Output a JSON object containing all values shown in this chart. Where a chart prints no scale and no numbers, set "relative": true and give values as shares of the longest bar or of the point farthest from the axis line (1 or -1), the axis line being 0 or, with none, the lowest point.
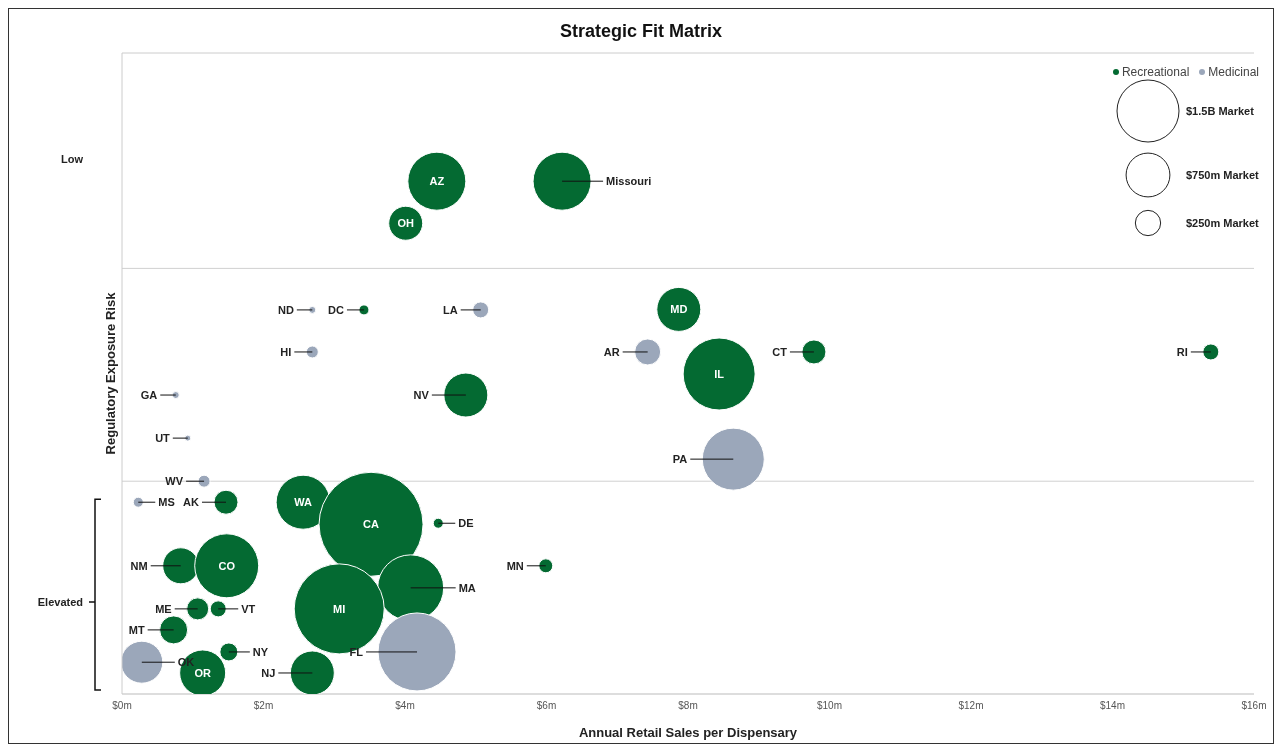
{
  "chart_data": {
    "type": "bubble",
    "title": "Strategic Fit Matrix",
    "xlabel": "Annual Retail Sales per Dispensary",
    "ylabel": "Regulatory Exposure Risk",
    "relative": true,
    "legend": "top right",
    "xlim": [
      0,
      16
    ],
    "xticks": [
      {
        "value": 0,
        "label": "$0m"
      },
      {
        "value": 2,
        "label": "$2m"
      },
      {
        "value": 4,
        "label": "$4m"
      },
      {
        "value": 6,
        "label": "$6m"
      },
      {
        "value": 8,
        "label": "$8m"
      },
      {
        "value": 10,
        "label": "$10m"
      },
      {
        "value": 12,
        "label": "$12m"
      },
      {
        "value": 14,
        "label": "$14m"
      },
      {
        "value": 16,
        "label": "$16m"
      }
    ],
    "size_legend": [
      {
        "value": 1500,
        "label": "$1.5B Market"
      },
      {
        "value": 750,
        "label": "$750m Market"
      },
      {
        "value": 250,
        "label": "$250m Market"
      }
    ],
    "ref_lines": [
      {
        "axis": "y",
        "value": 0.83,
        "color": "#d0d0d0"
      },
      {
        "axis": "y",
        "value": 0.415,
        "color": "#d0d0d0"
      }
    ],
    "series": [
      {
        "name": "Recreational",
        "color": "#046a32",
        "x": [
          4.45,
          6.22,
          4.01,
          7.87,
          3.42,
          9.78,
          15.39,
          8.44,
          4.86,
          1.47,
          2.56,
          3.52,
          4.47,
          5.99,
          0.83,
          1.48,
          4.08,
          3.07,
          1.07,
          1.36,
          0.73,
          1.51,
          1.14,
          2.69
        ],
        "values": [
          1.0,
          1.0,
          0.918,
          0.75,
          0.749,
          0.667,
          0.667,
          0.624,
          0.583,
          0.374,
          0.374,
          0.331,
          0.333,
          0.25,
          0.25,
          0.25,
          0.207,
          0.166,
          0.166,
          0.166,
          0.125,
          0.082,
          0.041,
          0.041
        ],
        "sizes": [
          1313,
          1313,
          451,
          755,
          39,
          225,
          100,
          2023,
          755,
          225,
          1138,
          4220,
          39,
          76,
          506,
          1598,
          1700,
          3161,
          189,
          100,
          306,
          126,
          826,
          755
        ]
      },
      {
        "name": "Medicinal",
        "color": "#9ba7ba",
        "x": [
          2.69,
          5.07,
          2.69,
          7.43,
          0.76,
          0.93,
          8.64,
          1.16,
          0.23,
          0.28,
          4.17
        ],
        "values": [
          0.749,
          0.749,
          0.667,
          0.667,
          0.583,
          0.499,
          0.458,
          0.415,
          0.374,
          0.062,
          0.082
        ],
        "sizes": [
          19,
          100,
          56,
          264,
          19,
          14,
          1500,
          56,
          39,
          688,
          2374
        ]
      }
    ],
    "annotations": [
      {
        "text": "AZ",
        "x": 4.45,
        "y": 1.0
      },
      {
        "text": "Missouri",
        "x": 6.22,
        "y": 1.0
      },
      {
        "text": "OH",
        "x": 4.01,
        "y": 0.918
      },
      {
        "text": "MD",
        "x": 7.87,
        "y": 0.75
      },
      {
        "text": "DC",
        "x": 3.42,
        "y": 0.749
      },
      {
        "text": "CT",
        "x": 9.78,
        "y": 0.667
      },
      {
        "text": "RI",
        "x": 15.39,
        "y": 0.667
      },
      {
        "text": "IL",
        "x": 8.44,
        "y": 0.624
      },
      {
        "text": "NV",
        "x": 4.86,
        "y": 0.583
      },
      {
        "text": "AK",
        "x": 1.47,
        "y": 0.374
      },
      {
        "text": "WA",
        "x": 2.56,
        "y": 0.374
      },
      {
        "text": "CA",
        "x": 3.52,
        "y": 0.331
      },
      {
        "text": "DE",
        "x": 4.47,
        "y": 0.333
      },
      {
        "text": "MN",
        "x": 5.99,
        "y": 0.25
      },
      {
        "text": "NM",
        "x": 0.83,
        "y": 0.25
      },
      {
        "text": "CO",
        "x": 1.48,
        "y": 0.25
      },
      {
        "text": "MA",
        "x": 4.08,
        "y": 0.207
      },
      {
        "text": "MI",
        "x": 3.07,
        "y": 0.166
      },
      {
        "text": "ME",
        "x": 1.07,
        "y": 0.166
      },
      {
        "text": "VT",
        "x": 1.36,
        "y": 0.166
      },
      {
        "text": "MT",
        "x": 0.73,
        "y": 0.125
      },
      {
        "text": "NY",
        "x": 1.51,
        "y": 0.082
      },
      {
        "text": "OR",
        "x": 1.14,
        "y": 0.041
      },
      {
        "text": "NJ",
        "x": 2.69,
        "y": 0.041
      },
      {
        "text": "ND",
        "x": 2.69,
        "y": 0.749
      },
      {
        "text": "LA",
        "x": 5.07,
        "y": 0.749
      },
      {
        "text": "HI",
        "x": 2.69,
        "y": 0.667
      },
      {
        "text": "AR",
        "x": 7.43,
        "y": 0.667
      },
      {
        "text": "GA",
        "x": 0.76,
        "y": 0.583
      },
      {
        "text": "UT",
        "x": 0.93,
        "y": 0.499
      },
      {
        "text": "PA",
        "x": 8.64,
        "y": 0.458
      },
      {
        "text": "WV",
        "x": 1.16,
        "y": 0.415
      },
      {
        "text": "MS",
        "x": 0.23,
        "y": 0.374
      },
      {
        "text": "OK",
        "x": 0.28,
        "y": 0.062
      },
      {
        "text": "FL",
        "x": 4.17,
        "y": 0.082
      },
      "Low",
      "Elevated"
    ]
  }
}
